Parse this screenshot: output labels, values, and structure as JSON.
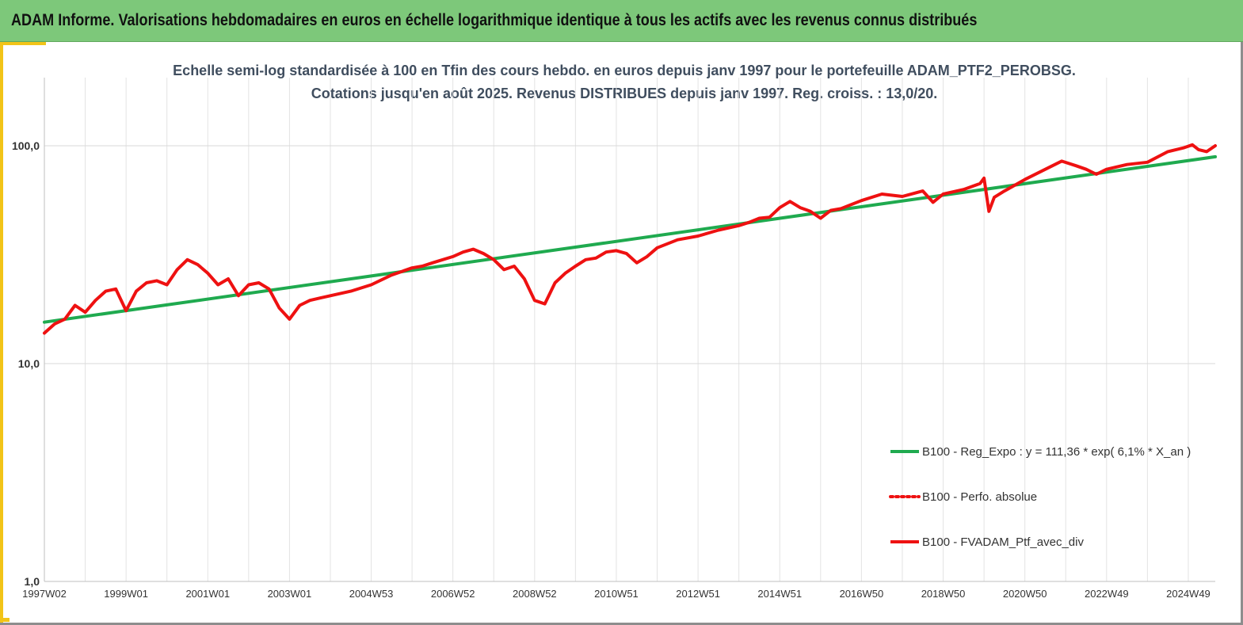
{
  "banner": {
    "title": "ADAM Informe. Valorisations hebdomadaires en euros en échelle logarithmique identique à tous les actifs avec les revenus connus distribués"
  },
  "colors": {
    "banner_bg": "#7dc87a",
    "accent_frame": "#f2c418",
    "regression": "#1faa4f",
    "portfolio": "#ee1111"
  },
  "chart_data": {
    "type": "line",
    "title": "Echelle semi-log standardisée à 100 en Tfin des cours hebdo. en euros depuis janv 1997 pour le portefeuille ADAM_PTF2_PEROBSG.",
    "subtitle": "Cotations jusqu'en août 2025. Revenus DISTRIBUES depuis janv 1997. Reg. croiss. : 13,0/20.",
    "y_scale": "log",
    "ylim": [
      1,
      200
    ],
    "y_ticks": [
      {
        "value": 1,
        "label": "1,0"
      },
      {
        "value": 10,
        "label": "10,0"
      },
      {
        "value": 100,
        "label": "100,0"
      }
    ],
    "xlim": [
      1997.0,
      2025.66
    ],
    "x_ticks": [
      {
        "value": 1997.0,
        "label": "1997W02"
      },
      {
        "value": 1999.0,
        "label": "1999W01"
      },
      {
        "value": 2001.0,
        "label": "2001W01"
      },
      {
        "value": 2003.0,
        "label": "2003W01"
      },
      {
        "value": 2005.0,
        "label": "2004W53"
      },
      {
        "value": 2007.0,
        "label": "2006W52"
      },
      {
        "value": 2009.0,
        "label": "2008W52"
      },
      {
        "value": 2011.0,
        "label": "2010W51"
      },
      {
        "value": 2013.0,
        "label": "2012W51"
      },
      {
        "value": 2015.0,
        "label": "2014W51"
      },
      {
        "value": 2017.0,
        "label": "2016W50"
      },
      {
        "value": 2019.0,
        "label": "2018W50"
      },
      {
        "value": 2021.0,
        "label": "2020W50"
      },
      {
        "value": 2023.0,
        "label": "2022W49"
      },
      {
        "value": 2025.0,
        "label": "2024W49"
      }
    ],
    "grid": {
      "vertical": true,
      "horizontal": true
    },
    "legend_position": "bottom-right",
    "legend": [
      {
        "key": "reg",
        "label": "B100 - Reg_Expo : y = 111,36 * exp( 6,1% *  X_an )",
        "style": "solid",
        "color": "#1faa4f"
      },
      {
        "key": "abs",
        "label": "B100 - Perfo. absolue",
        "style": "dotted",
        "color": "#ee1111"
      },
      {
        "key": "ptf",
        "label": "B100 - FVADAM_Ptf_avec_div",
        "style": "solid",
        "color": "#ee1111"
      }
    ],
    "series": [
      {
        "name": "B100 - Reg_Expo : y = 111,36 * exp( 6,1% *  X_an )",
        "key": "reg",
        "x": [
          1997.0,
          2025.66
        ],
        "y": [
          15.5,
          89.0
        ]
      },
      {
        "name": "B100 - FVADAM_Ptf_avec_div",
        "key": "ptf",
        "x": [
          1997.0,
          1997.25,
          1997.5,
          1997.75,
          1998.0,
          1998.25,
          1998.5,
          1998.75,
          1999.0,
          1999.25,
          1999.5,
          1999.75,
          2000.0,
          2000.25,
          2000.5,
          2000.75,
          2001.0,
          2001.25,
          2001.5,
          2001.75,
          2002.0,
          2002.25,
          2002.5,
          2002.75,
          2003.0,
          2003.25,
          2003.5,
          2003.75,
          2004.0,
          2004.5,
          2005.0,
          2005.5,
          2006.0,
          2006.25,
          2006.5,
          2007.0,
          2007.25,
          2007.5,
          2007.75,
          2008.0,
          2008.25,
          2008.5,
          2008.75,
          2009.0,
          2009.25,
          2009.5,
          2009.75,
          2010.0,
          2010.25,
          2010.5,
          2010.75,
          2011.0,
          2011.25,
          2011.5,
          2011.75,
          2012.0,
          2012.5,
          2013.0,
          2013.5,
          2014.0,
          2014.25,
          2014.5,
          2014.75,
          2015.0,
          2015.25,
          2015.5,
          2015.75,
          2016.0,
          2016.25,
          2016.5,
          2017.0,
          2017.5,
          2018.0,
          2018.5,
          2018.75,
          2019.0,
          2019.5,
          2019.9,
          2020.0,
          2020.12,
          2020.25,
          2020.5,
          2021.0,
          2021.5,
          2021.9,
          2022.25,
          2022.5,
          2022.75,
          2023.0,
          2023.5,
          2024.0,
          2024.5,
          2024.9,
          2025.1,
          2025.25,
          2025.45,
          2025.66
        ],
        "y": [
          13.8,
          15.2,
          16.0,
          18.5,
          17.2,
          19.5,
          21.5,
          22.0,
          17.5,
          21.5,
          23.5,
          24.0,
          23.0,
          27.0,
          30.0,
          28.5,
          26.0,
          23.0,
          24.5,
          20.5,
          23.0,
          23.5,
          22.0,
          18.0,
          16.0,
          18.5,
          19.5,
          20.0,
          20.5,
          21.5,
          23.0,
          25.5,
          27.5,
          28.0,
          29.0,
          31.0,
          32.5,
          33.5,
          32.0,
          30.0,
          27.0,
          28.0,
          24.5,
          19.5,
          18.8,
          23.5,
          26.0,
          28.0,
          30.0,
          30.5,
          32.5,
          33.0,
          32.0,
          29.0,
          31.0,
          34.0,
          37.0,
          38.5,
          41.0,
          43.0,
          44.5,
          46.5,
          47.0,
          52.0,
          55.5,
          52.0,
          50.0,
          46.5,
          50.5,
          51.5,
          56.0,
          60.0,
          58.5,
          62.0,
          55.0,
          60.0,
          63.0,
          67.0,
          71.0,
          50.0,
          58.0,
          62.0,
          70.0,
          78.0,
          85.0,
          81.0,
          78.0,
          74.0,
          78.0,
          82.0,
          84.0,
          94.0,
          98.0,
          101.0,
          96.0,
          94.0,
          100.0
        ]
      }
    ]
  }
}
